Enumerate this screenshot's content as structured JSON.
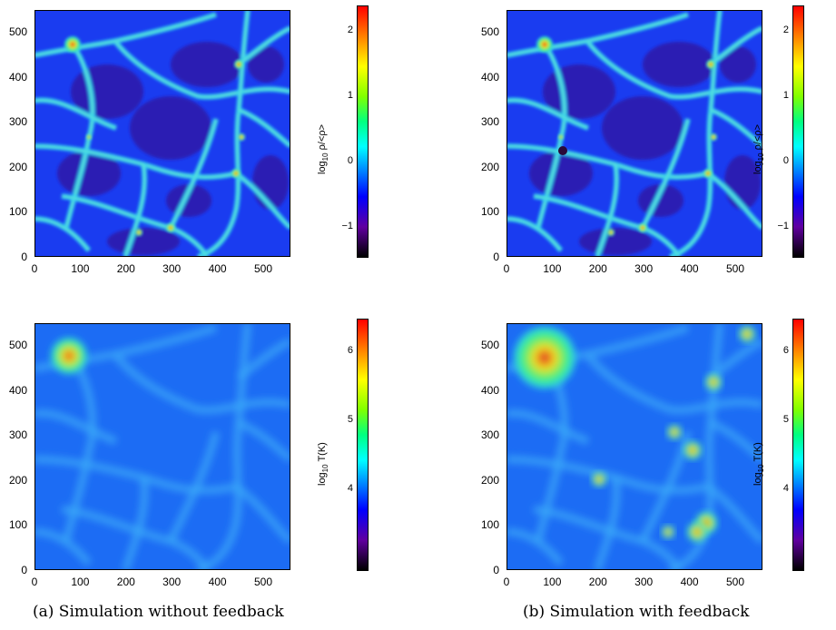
{
  "figure": {
    "panels": [
      {
        "id": "a-density",
        "caption_group": "a",
        "quantity": "density",
        "colorbar": {
          "label_prefix": "log",
          "label_sub": "10",
          "label_suffix": " ρ/<ρ>",
          "ticks": [
            "2",
            "1",
            "0",
            "−1"
          ]
        },
        "x_ticks": [
          "0",
          "100",
          "200",
          "300",
          "400",
          "500"
        ],
        "y_ticks": [
          "500",
          "400",
          "300",
          "200",
          "100",
          "0"
        ]
      },
      {
        "id": "b-density",
        "caption_group": "b",
        "quantity": "density",
        "colorbar": {
          "label_prefix": "log",
          "label_sub": "10",
          "label_suffix": " ρ/<ρ>",
          "ticks": [
            "2",
            "1",
            "0",
            "−1"
          ]
        },
        "x_ticks": [
          "0",
          "100",
          "200",
          "300",
          "400",
          "500"
        ],
        "y_ticks": [
          "500",
          "400",
          "300",
          "200",
          "100",
          "0"
        ]
      },
      {
        "id": "a-temp",
        "caption_group": "a",
        "quantity": "temperature",
        "colorbar": {
          "label_prefix": "log",
          "label_sub": "10",
          "label_suffix": " T(K)",
          "ticks": [
            "6",
            "5",
            "4"
          ]
        },
        "x_ticks": [
          "0",
          "100",
          "200",
          "300",
          "400",
          "500"
        ],
        "y_ticks": [
          "500",
          "400",
          "300",
          "200",
          "100",
          "0"
        ]
      },
      {
        "id": "b-temp",
        "caption_group": "b",
        "quantity": "temperature",
        "colorbar": {
          "label_prefix": "log",
          "label_sub": "10",
          "label_suffix": " T(K)",
          "ticks": [
            "6",
            "5",
            "4"
          ]
        },
        "x_ticks": [
          "0",
          "100",
          "200",
          "300",
          "400",
          "500"
        ],
        "y_ticks": [
          "500",
          "400",
          "300",
          "200",
          "100",
          "0"
        ]
      }
    ],
    "captions": {
      "a": "(a) Simulation without feedback",
      "b": "(b) Simulation with feedback"
    },
    "colors": {
      "void": "#3016a8",
      "field": "#1a3cf0",
      "filament": "#28d0f0",
      "dense": "#40f080",
      "hot": "#f0e020",
      "core": "#e02020",
      "temp_bg": "#1c6cf4"
    }
  }
}
